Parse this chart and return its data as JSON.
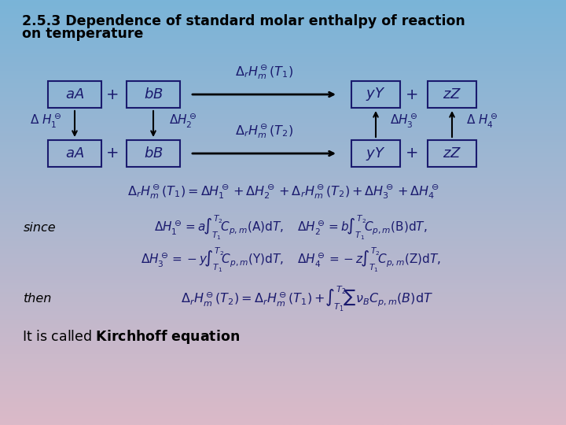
{
  "bg_top_color": "#7ab4d8",
  "bg_bottom_color": "#dbbac8",
  "text_color": "#1a1a6e",
  "box_color": "#1a1a6e",
  "title_line1": "2.5.3 Dependence of standard molar enthalpy of reaction",
  "title_line2": "on temperature"
}
